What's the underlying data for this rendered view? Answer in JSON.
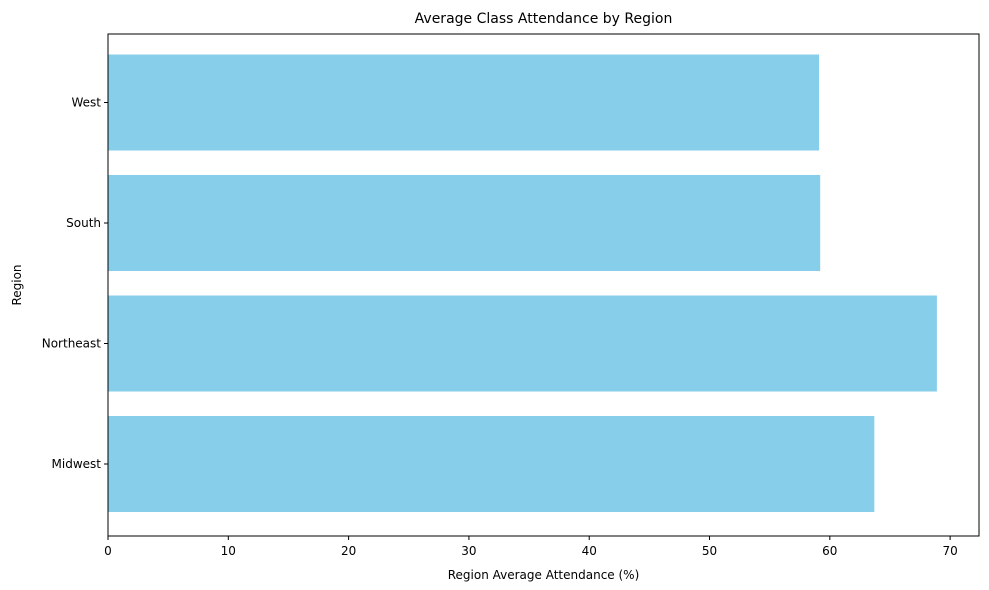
{
  "chart_data": {
    "type": "bar",
    "orientation": "horizontal",
    "title": "Average Class Attendance by Region",
    "xlabel": "Region Average Attendance (%)",
    "ylabel": "Region",
    "categories": [
      "Midwest",
      "Northeast",
      "South",
      "West"
    ],
    "values": [
      63.7,
      68.9,
      59.2,
      59.1
    ],
    "xlim": [
      0,
      72.4
    ],
    "xticks": [
      "0",
      "10",
      "20",
      "30",
      "40",
      "50",
      "60",
      "70"
    ],
    "bar_color": "#87ceeb",
    "grid": false,
    "legend": "none"
  }
}
